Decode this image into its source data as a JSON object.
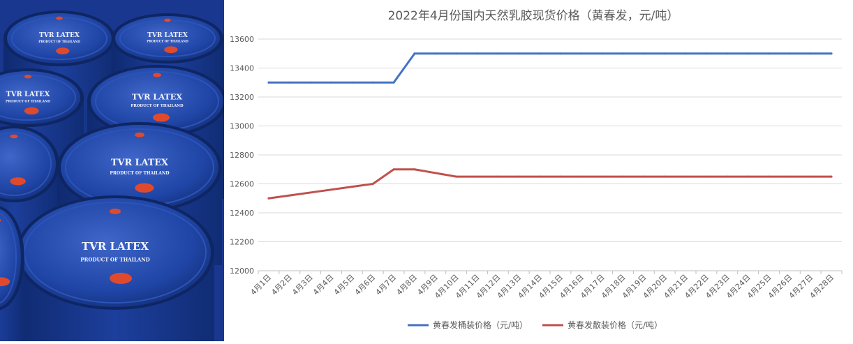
{
  "photo": {
    "drum_text_main": "TVR LATEX",
    "drum_text_sub": "PRODUCT OF THAILAND",
    "colors": {
      "drum_blue": "#1d3f9c",
      "cap_red": "#e04a2c"
    }
  },
  "chart_data": {
    "type": "line",
    "title": "2022年4月份国内天然乳胶现货价格（黄春发，元/吨）",
    "xlabel": "",
    "ylabel": "",
    "categories": [
      "4月1日",
      "4月2日",
      "4月3日",
      "4月4日",
      "4月5日",
      "4月6日",
      "4月7日",
      "4月8日",
      "4月9日",
      "4月10日",
      "4月11日",
      "4月12日",
      "4月13日",
      "4月14日",
      "4月15日",
      "4月16日",
      "4月17日",
      "4月18日",
      "4月19日",
      "4月20日",
      "4月21日",
      "4月22日",
      "4月23日",
      "4月24日",
      "4月25日",
      "4月26日",
      "4月27日",
      "4月28日"
    ],
    "ylim": [
      12000,
      13600
    ],
    "yticks": [
      12000,
      12200,
      12400,
      12600,
      12800,
      13000,
      13200,
      13400,
      13600
    ],
    "grid": "horizontal",
    "legend_position": "bottom",
    "series": [
      {
        "name": "黄春发桶装价格（元/吨）",
        "color": "#4472c4",
        "values": [
          13300,
          13300,
          13300,
          13300,
          13300,
          13300,
          13300,
          13500,
          13500,
          13500,
          13500,
          13500,
          13500,
          13500,
          13500,
          13500,
          13500,
          13500,
          13500,
          13500,
          13500,
          13500,
          13500,
          13500,
          13500,
          13500,
          13500,
          13500
        ]
      },
      {
        "name": "黄春发散装价格（元/吨）",
        "color": "#c0504d",
        "values": [
          12500,
          12520,
          12540,
          12560,
          12580,
          12600,
          12700,
          12700,
          12675,
          12650,
          12650,
          12650,
          12650,
          12650,
          12650,
          12650,
          12650,
          12650,
          12650,
          12650,
          12650,
          12650,
          12650,
          12650,
          12650,
          12650,
          12650,
          12650
        ]
      }
    ]
  }
}
